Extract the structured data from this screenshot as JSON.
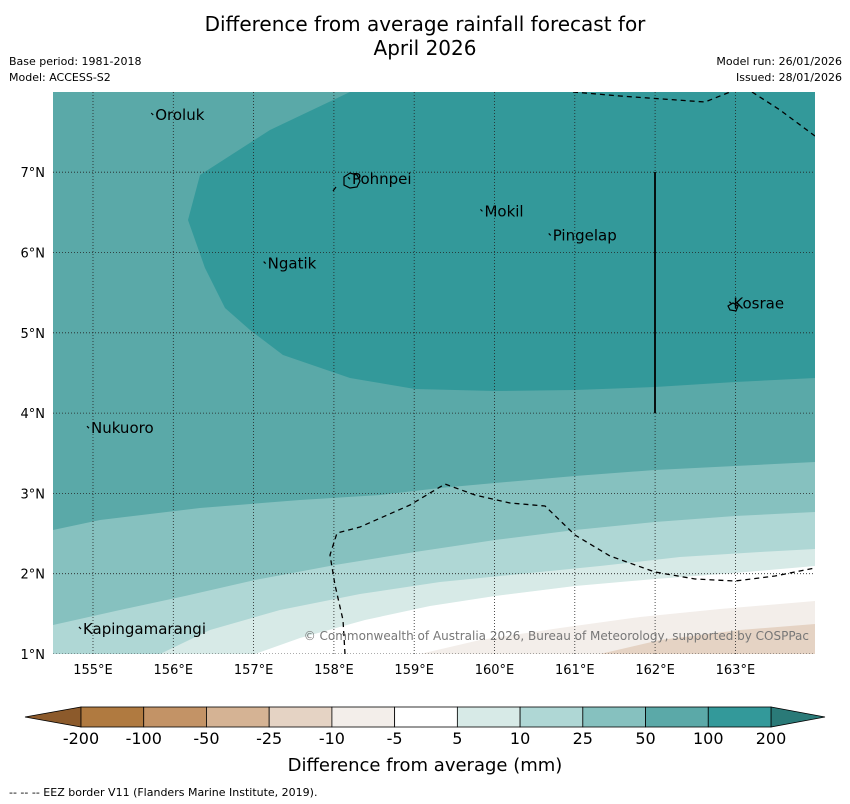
{
  "title_line1": "Difference from average rainfall forecast for",
  "title_line2": "April 2026",
  "base_period": "Base period: 1981-2018",
  "model": "Model: ACCESS-S2",
  "model_run": "Model run: 26/01/2026",
  "issued": "Issued: 28/01/2026",
  "lon_ticks": [
    "155°E",
    "156°E",
    "157°E",
    "158°E",
    "159°E",
    "160°E",
    "161°E",
    "162°E",
    "163°E"
  ],
  "lat_ticks": [
    "1°N",
    "2°N",
    "3°N",
    "4°N",
    "5°N",
    "6°N",
    "7°N"
  ],
  "places": [
    {
      "name": "Oroluk",
      "lon": 155.75,
      "lat": 7.65
    },
    {
      "name": "Pohnpei",
      "lon": 158.2,
      "lat": 6.85
    },
    {
      "name": "Mokil",
      "lon": 159.85,
      "lat": 6.45
    },
    {
      "name": "Pingelap",
      "lon": 160.7,
      "lat": 6.15
    },
    {
      "name": "Ngatik",
      "lon": 157.15,
      "lat": 5.8
    },
    {
      "name": "Kosrae",
      "lon": 162.95,
      "lat": 5.3
    },
    {
      "name": "Nukuoro",
      "lon": 154.95,
      "lat": 3.75
    },
    {
      "name": "Kapingamarangi",
      "lon": 154.85,
      "lat": 1.25
    }
  ],
  "copyright": "© Commonwealth of Australia 2026, Bureau of Meteorology, supported by COSPPac",
  "legend": {
    "ticks": [
      "-200",
      "-100",
      "-50",
      "-25",
      "-10",
      "-5",
      "5",
      "10",
      "25",
      "50",
      "100",
      "200"
    ],
    "colors": [
      "#b07a40",
      "#c39366",
      "#d5b394",
      "#e5d3c4",
      "#f3eeea",
      "#ffffff",
      "#d7eae7",
      "#afd7d5",
      "#86c1bf",
      "#5ba9a8",
      "#33999a",
      "#2a807e"
    ],
    "extend_low": "#8c5a2b",
    "extend_high": "#2a7a78",
    "title": "Difference from average (mm)"
  },
  "footnote": "-- -- -- EEZ border V11 (Flanders Marine Institute, 2019)."
}
